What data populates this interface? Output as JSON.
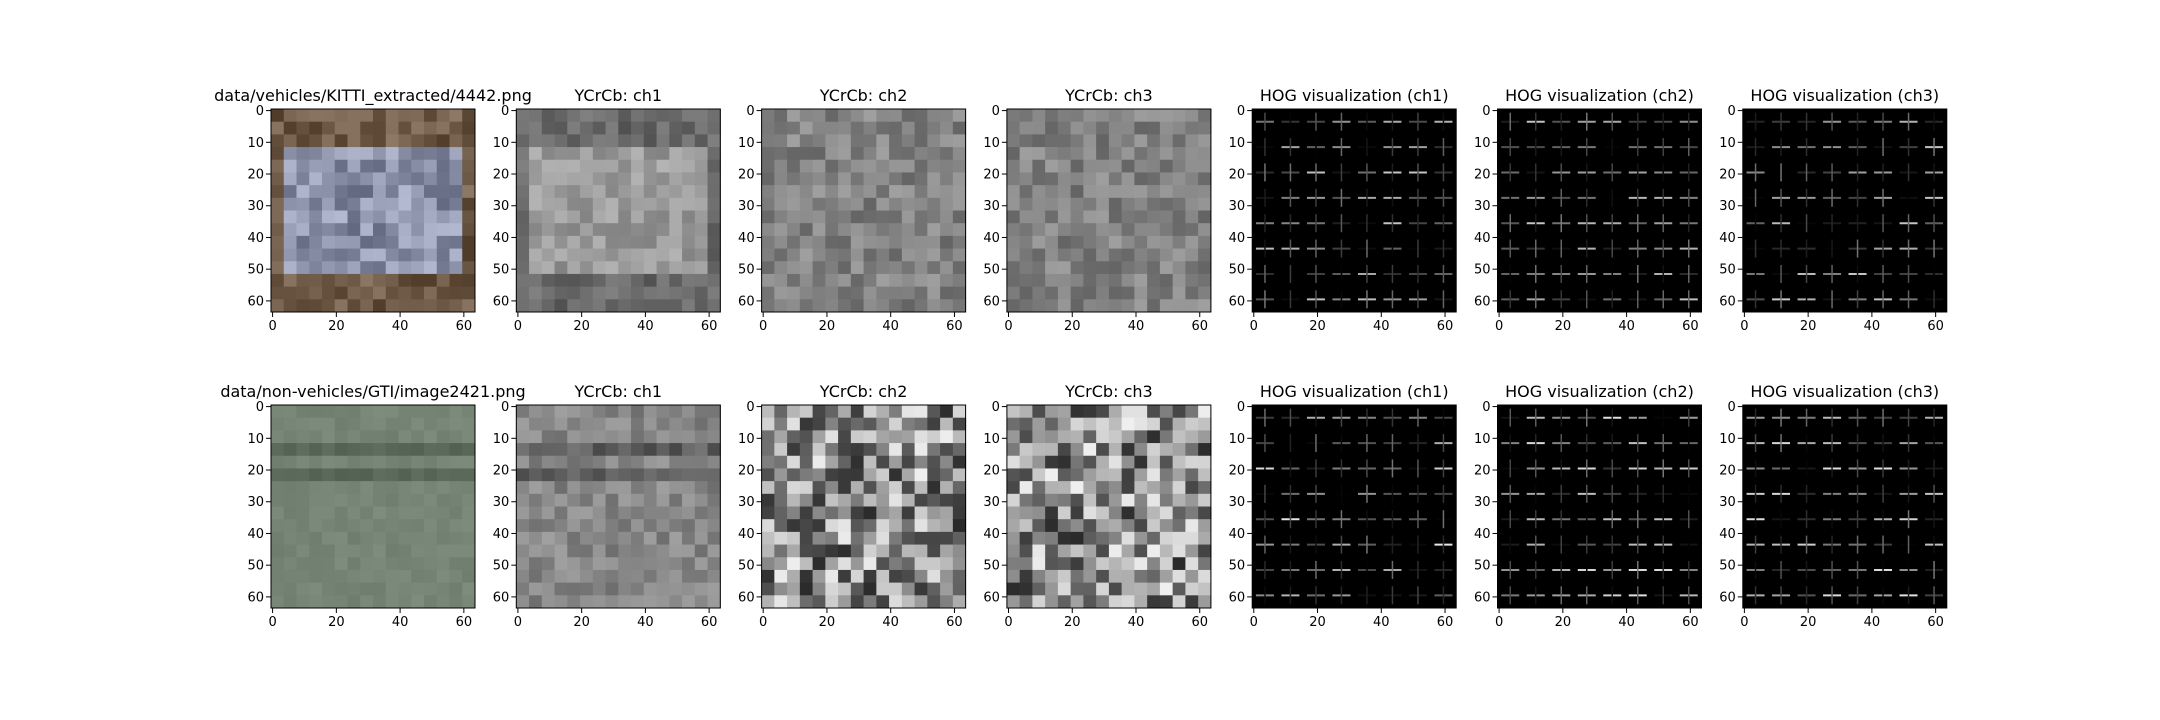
{
  "chart_data": [
    {
      "type": "image",
      "title": "data/vehicles/KITTI_extracted/4442.png",
      "xlim": [
        -0.5,
        63.5
      ],
      "ylim": [
        63.5,
        -0.5
      ],
      "xticks": [
        0,
        20,
        40,
        60
      ],
      "yticks": [
        0,
        10,
        20,
        30,
        40,
        50,
        60
      ]
    },
    {
      "type": "image",
      "title": "YCrCb: ch1",
      "xlim": [
        -0.5,
        63.5
      ],
      "ylim": [
        63.5,
        -0.5
      ],
      "xticks": [
        0,
        20,
        40,
        60
      ],
      "yticks": [
        0,
        10,
        20,
        30,
        40,
        50,
        60
      ]
    },
    {
      "type": "image",
      "title": "YCrCb: ch2",
      "xlim": [
        -0.5,
        63.5
      ],
      "ylim": [
        63.5,
        -0.5
      ],
      "xticks": [
        0,
        20,
        40,
        60
      ],
      "yticks": [
        0,
        10,
        20,
        30,
        40,
        50,
        60
      ]
    },
    {
      "type": "image",
      "title": "YCrCb: ch3",
      "xlim": [
        -0.5,
        63.5
      ],
      "ylim": [
        63.5,
        -0.5
      ],
      "xticks": [
        0,
        20,
        40,
        60
      ],
      "yticks": [
        0,
        10,
        20,
        30,
        40,
        50,
        60
      ]
    },
    {
      "type": "image",
      "title": "HOG visualization (ch1)",
      "xlim": [
        -0.5,
        63.5
      ],
      "ylim": [
        63.5,
        -0.5
      ],
      "xticks": [
        0,
        20,
        40,
        60
      ],
      "yticks": [
        0,
        10,
        20,
        30,
        40,
        50,
        60
      ]
    },
    {
      "type": "image",
      "title": "HOG visualization (ch2)",
      "xlim": [
        -0.5,
        63.5
      ],
      "ylim": [
        63.5,
        -0.5
      ],
      "xticks": [
        0,
        20,
        40,
        60
      ],
      "yticks": [
        0,
        10,
        20,
        30,
        40,
        50,
        60
      ]
    },
    {
      "type": "image",
      "title": "HOG visualization (ch3)",
      "xlim": [
        -0.5,
        63.5
      ],
      "ylim": [
        63.5,
        -0.5
      ],
      "xticks": [
        0,
        20,
        40,
        60
      ],
      "yticks": [
        0,
        10,
        20,
        30,
        40,
        50,
        60
      ]
    },
    {
      "type": "image",
      "title": "data/non-vehicles/GTI/image2421.png",
      "xlim": [
        -0.5,
        63.5
      ],
      "ylim": [
        63.5,
        -0.5
      ],
      "xticks": [
        0,
        20,
        40,
        60
      ],
      "yticks": [
        0,
        10,
        20,
        30,
        40,
        50,
        60
      ]
    },
    {
      "type": "image",
      "title": "YCrCb: ch1",
      "xlim": [
        -0.5,
        63.5
      ],
      "ylim": [
        63.5,
        -0.5
      ],
      "xticks": [
        0,
        20,
        40,
        60
      ],
      "yticks": [
        0,
        10,
        20,
        30,
        40,
        50,
        60
      ]
    },
    {
      "type": "image",
      "title": "YCrCb: ch2",
      "xlim": [
        -0.5,
        63.5
      ],
      "ylim": [
        63.5,
        -0.5
      ],
      "xticks": [
        0,
        20,
        40,
        60
      ],
      "yticks": [
        0,
        10,
        20,
        30,
        40,
        50,
        60
      ]
    },
    {
      "type": "image",
      "title": "YCrCb: ch3",
      "xlim": [
        -0.5,
        63.5
      ],
      "ylim": [
        63.5,
        -0.5
      ],
      "xticks": [
        0,
        20,
        40,
        60
      ],
      "yticks": [
        0,
        10,
        20,
        30,
        40,
        50,
        60
      ]
    },
    {
      "type": "image",
      "title": "HOG visualization (ch1)",
      "xlim": [
        -0.5,
        63.5
      ],
      "ylim": [
        63.5,
        -0.5
      ],
      "xticks": [
        0,
        20,
        40,
        60
      ],
      "yticks": [
        0,
        10,
        20,
        30,
        40,
        50,
        60
      ]
    },
    {
      "type": "image",
      "title": "HOG visualization (ch2)",
      "xlim": [
        -0.5,
        63.5
      ],
      "ylim": [
        63.5,
        -0.5
      ],
      "xticks": [
        0,
        20,
        40,
        60
      ],
      "yticks": [
        0,
        10,
        20,
        30,
        40,
        50,
        60
      ]
    },
    {
      "type": "image",
      "title": "HOG visualization (ch3)",
      "xlim": [
        -0.5,
        63.5
      ],
      "ylim": [
        63.5,
        -0.5
      ],
      "xticks": [
        0,
        20,
        40,
        60
      ],
      "yticks": [
        0,
        10,
        20,
        30,
        40,
        50,
        60
      ]
    }
  ]
}
